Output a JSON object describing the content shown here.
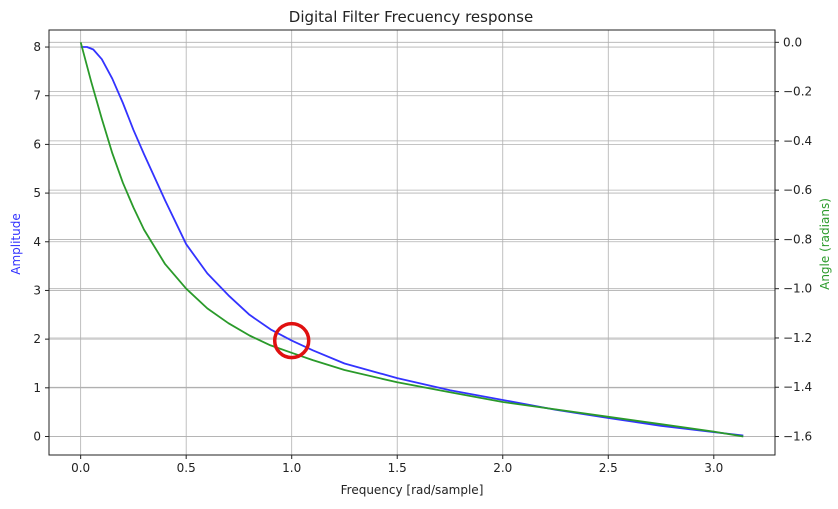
{
  "chart_data": {
    "type": "line",
    "title": "Digital Filter Frecuency response",
    "xlabel": "Frequency [rad/sample]",
    "ylabel_left": "Amplitude",
    "ylabel_right": "Angle (radians)",
    "xlim": [
      -0.15,
      3.29
    ],
    "ylim_left": [
      -0.38,
      8.35
    ],
    "ylim_right": [
      -1.675,
      0.05
    ],
    "xticks": [
      0.0,
      0.5,
      1.0,
      1.5,
      2.0,
      2.5,
      3.0
    ],
    "xtick_labels": [
      "0.0",
      "0.5",
      "1.0",
      "1.5",
      "2.0",
      "2.5",
      "3.0"
    ],
    "yticks_left": [
      0,
      1,
      2,
      3,
      4,
      5,
      6,
      7,
      8
    ],
    "ytick_labels_left": [
      "0",
      "1",
      "2",
      "3",
      "4",
      "5",
      "6",
      "7",
      "8"
    ],
    "yticks_right": [
      0.0,
      -0.2,
      -0.4,
      -0.6,
      -0.8,
      -1.0,
      -1.2,
      -1.4,
      -1.6
    ],
    "ytick_labels_right": [
      "0.0",
      "−0.2",
      "−0.4",
      "−0.6",
      "−0.8",
      "−1.0",
      "−1.2",
      "−1.4",
      "−1.6"
    ],
    "grid": true,
    "series": [
      {
        "axis": "left",
        "color": "#3333ff",
        "x": [
          0.0,
          0.03,
          0.06,
          0.1,
          0.15,
          0.2,
          0.25,
          0.3,
          0.4,
          0.5,
          0.6,
          0.7,
          0.8,
          0.9,
          1.0,
          1.1,
          1.25,
          1.5,
          1.75,
          2.0,
          2.25,
          2.5,
          2.75,
          3.0,
          3.14
        ],
        "y": [
          8.0,
          8.0,
          7.95,
          7.75,
          7.35,
          6.85,
          6.3,
          5.8,
          4.85,
          3.95,
          3.35,
          2.9,
          2.5,
          2.2,
          1.97,
          1.77,
          1.5,
          1.2,
          0.95,
          0.75,
          0.55,
          0.38,
          0.22,
          0.09,
          0.02
        ]
      },
      {
        "axis": "right",
        "color": "#2a9a2a",
        "x": [
          0.0,
          0.05,
          0.1,
          0.15,
          0.2,
          0.25,
          0.3,
          0.4,
          0.5,
          0.6,
          0.7,
          0.8,
          0.9,
          1.0,
          1.1,
          1.25,
          1.5,
          1.75,
          2.0,
          2.25,
          2.5,
          2.75,
          3.0,
          3.14
        ],
        "y": [
          0.0,
          -0.16,
          -0.31,
          -0.45,
          -0.57,
          -0.67,
          -0.76,
          -0.9,
          -1.0,
          -1.08,
          -1.14,
          -1.19,
          -1.23,
          -1.26,
          -1.29,
          -1.33,
          -1.38,
          -1.42,
          -1.46,
          -1.49,
          -1.52,
          -1.55,
          -1.58,
          -1.6
        ]
      }
    ],
    "annotation": {
      "shape": "circle",
      "color": "#e01010",
      "x": 1.0,
      "y": 1.97
    }
  }
}
